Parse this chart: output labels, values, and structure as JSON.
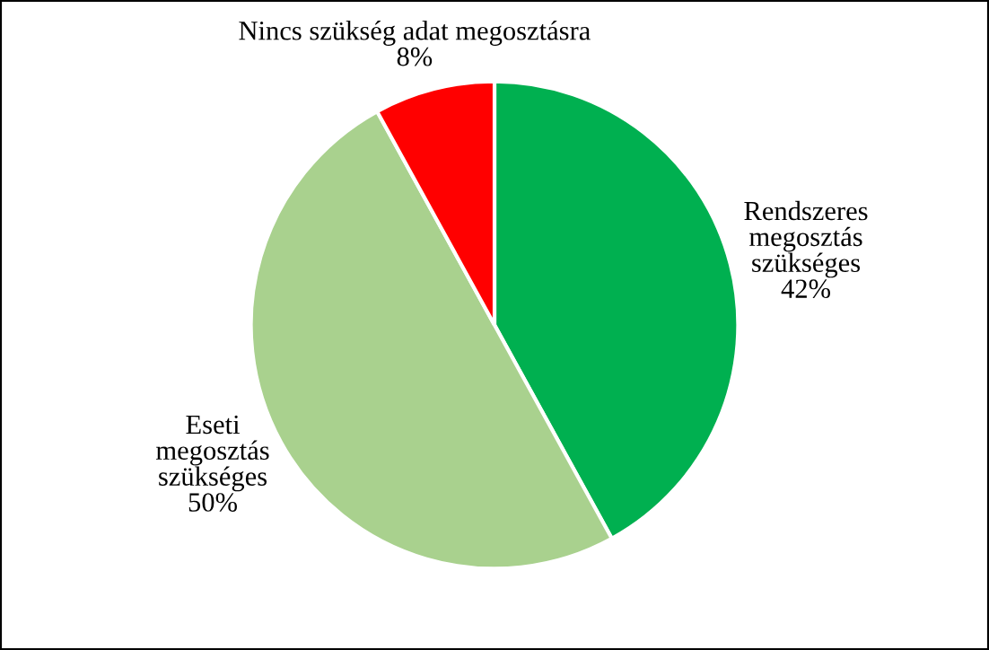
{
  "chart_data": {
    "type": "pie",
    "categories": [
      "Rendszeres\nmegosztás\nszükséges",
      "Eseti\nmegosztás\nszükséges",
      "Nincs szükség adat megosztásra"
    ],
    "values": [
      42,
      50,
      8
    ],
    "value_labels": [
      "42%",
      "50%",
      "8%"
    ],
    "colors": [
      "#00b050",
      "#a9d18e",
      "#ff0000"
    ],
    "legend": false
  }
}
